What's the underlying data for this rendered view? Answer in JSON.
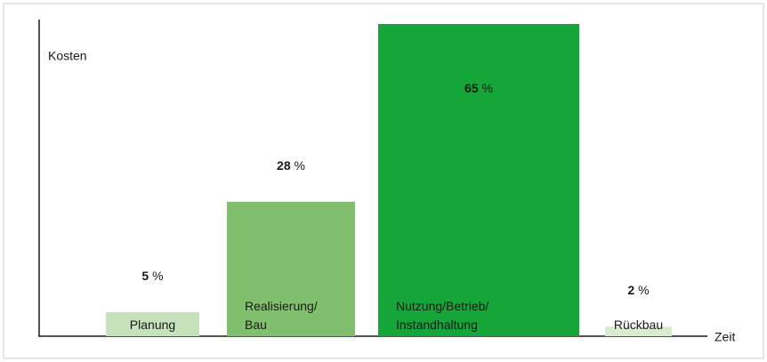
{
  "chart_data": {
    "type": "bar",
    "y_label": "Kosten",
    "x_label": "Zeit",
    "categories": [
      "Planung",
      "Realisierung/\nBau",
      "Nutzung/Betrieb/\nInstandhaltung",
      "Rückbau"
    ],
    "values": [
      5,
      28,
      65,
      2
    ],
    "value_labels": [
      "5 %",
      "28 %",
      "65 %",
      "2 %"
    ],
    "colors": [
      "#c5e2ba",
      "#80bf6e",
      "#16a538",
      "#d8edcf"
    ],
    "ylim": [
      0,
      65
    ]
  }
}
